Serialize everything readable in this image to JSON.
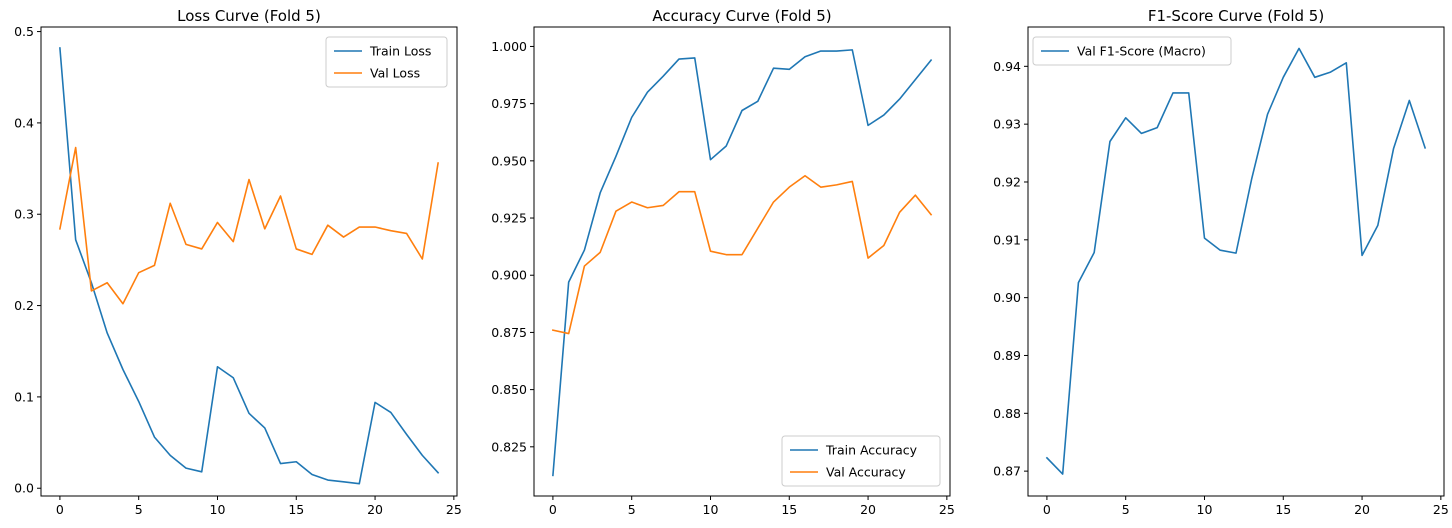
{
  "chart_data": [
    {
      "type": "line",
      "title": "Loss Curve (Fold 5)",
      "xlabel": "",
      "ylabel": "",
      "xlim": [
        -1.2,
        25.2
      ],
      "ylim": [
        -0.0085,
        0.505
      ],
      "xticks": [
        0,
        5,
        10,
        15,
        20,
        25
      ],
      "xtick_labels": [
        "0",
        "5",
        "10",
        "15",
        "20",
        "25"
      ],
      "yticks": [
        0.0,
        0.1,
        0.2,
        0.3,
        0.4,
        0.5
      ],
      "ytick_labels": [
        "0.0",
        "0.1",
        "0.2",
        "0.3",
        "0.4",
        "0.5"
      ],
      "legend_position": "top-right",
      "x": [
        0,
        1,
        2,
        3,
        4,
        5,
        6,
        7,
        8,
        9,
        10,
        11,
        12,
        13,
        14,
        15,
        16,
        17,
        18,
        19,
        20,
        21,
        22,
        23,
        24
      ],
      "series": [
        {
          "name": "Train Loss",
          "color": "#1f77b4",
          "values": [
            0.482,
            0.272,
            0.225,
            0.17,
            0.13,
            0.095,
            0.056,
            0.036,
            0.022,
            0.018,
            0.133,
            0.121,
            0.082,
            0.066,
            0.027,
            0.029,
            0.015,
            0.009,
            0.007,
            0.005,
            0.094,
            0.083,
            0.059,
            0.036,
            0.017
          ]
        },
        {
          "name": "Val Loss",
          "color": "#ff7f0e",
          "values": [
            0.284,
            0.373,
            0.216,
            0.225,
            0.202,
            0.236,
            0.244,
            0.312,
            0.267,
            0.262,
            0.291,
            0.27,
            0.338,
            0.284,
            0.32,
            0.262,
            0.256,
            0.288,
            0.275,
            0.286,
            0.286,
            0.282,
            0.279,
            0.251,
            0.356
          ]
        }
      ]
    },
    {
      "type": "line",
      "title": "Accuracy Curve (Fold 5)",
      "xlabel": "",
      "ylabel": "",
      "xlim": [
        -1.2,
        25.2
      ],
      "ylim": [
        0.8035,
        1.0085
      ],
      "xticks": [
        0,
        5,
        10,
        15,
        20,
        25
      ],
      "xtick_labels": [
        "0",
        "5",
        "10",
        "15",
        "20",
        "25"
      ],
      "yticks": [
        0.825,
        0.85,
        0.875,
        0.9,
        0.925,
        0.95,
        0.975,
        1.0
      ],
      "ytick_labels": [
        "0.825",
        "0.850",
        "0.875",
        "0.900",
        "0.925",
        "0.950",
        "0.975",
        "1.000"
      ],
      "legend_position": "bottom-right",
      "x": [
        0,
        1,
        2,
        3,
        4,
        5,
        6,
        7,
        8,
        9,
        10,
        11,
        12,
        13,
        14,
        15,
        16,
        17,
        18,
        19,
        20,
        21,
        22,
        23,
        24
      ],
      "series": [
        {
          "name": "Train Accuracy",
          "color": "#1f77b4",
          "values": [
            0.8125,
            0.897,
            0.911,
            0.936,
            0.952,
            0.969,
            0.98,
            0.987,
            0.9945,
            0.995,
            0.9505,
            0.9565,
            0.972,
            0.976,
            0.9905,
            0.99,
            0.9955,
            0.998,
            0.998,
            0.9985,
            0.9655,
            0.97,
            0.977,
            0.9855,
            0.994
          ]
        },
        {
          "name": "Val Accuracy",
          "color": "#ff7f0e",
          "values": [
            0.876,
            0.8745,
            0.904,
            0.91,
            0.928,
            0.932,
            0.9295,
            0.9305,
            0.9365,
            0.9365,
            0.9105,
            0.909,
            0.909,
            0.9205,
            0.932,
            0.9385,
            0.9435,
            0.9385,
            0.9395,
            0.941,
            0.9075,
            0.913,
            0.9275,
            0.935,
            0.9265
          ]
        }
      ]
    },
    {
      "type": "line",
      "title": "F1-Score Curve (Fold 5)",
      "xlabel": "",
      "ylabel": "",
      "xlim": [
        -1.2,
        25.2
      ],
      "ylim": [
        0.8657,
        0.9468
      ],
      "xticks": [
        0,
        5,
        10,
        15,
        20,
        25
      ],
      "xtick_labels": [
        "0",
        "5",
        "10",
        "15",
        "20",
        "25"
      ],
      "yticks": [
        0.87,
        0.88,
        0.89,
        0.9,
        0.91,
        0.92,
        0.93,
        0.94
      ],
      "ytick_labels": [
        "0.87",
        "0.88",
        "0.89",
        "0.90",
        "0.91",
        "0.92",
        "0.93",
        "0.94"
      ],
      "legend_position": "top-left",
      "x": [
        0,
        1,
        2,
        3,
        4,
        5,
        6,
        7,
        8,
        9,
        10,
        11,
        12,
        13,
        14,
        15,
        16,
        17,
        18,
        19,
        20,
        21,
        22,
        23,
        24
      ],
      "series": [
        {
          "name": "Val F1-Score (Macro)",
          "color": "#1f77b4",
          "values": [
            0.8723,
            0.8695,
            0.9026,
            0.9078,
            0.927,
            0.9311,
            0.9284,
            0.9294,
            0.9354,
            0.9354,
            0.9103,
            0.9082,
            0.9077,
            0.9206,
            0.9317,
            0.9381,
            0.9431,
            0.9381,
            0.939,
            0.9406,
            0.9073,
            0.9125,
            0.9258,
            0.9341,
            0.9259
          ]
        }
      ]
    }
  ]
}
